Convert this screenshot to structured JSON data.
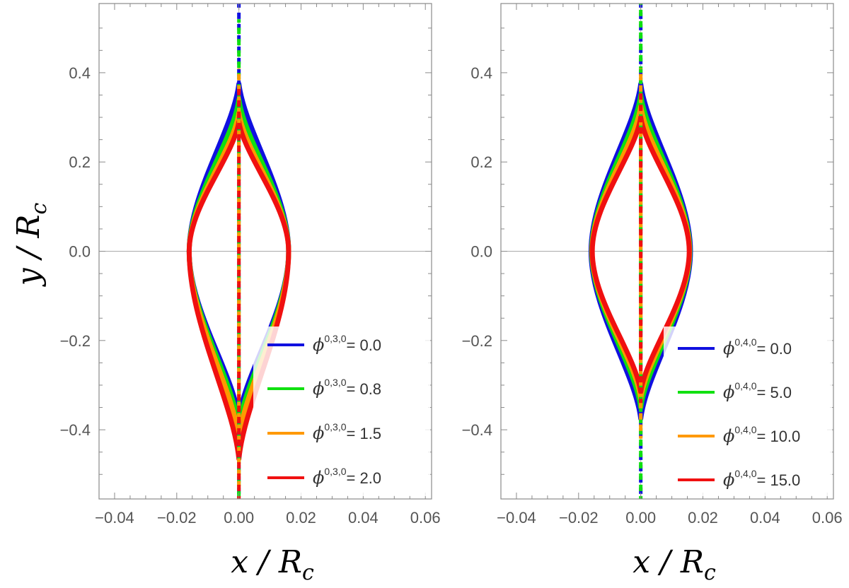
{
  "chart_data": [
    {
      "type": "line",
      "panel": "left",
      "xlabel": "x / R",
      "xlabel_sub": "c",
      "ylabel": "y / R",
      "ylabel_sub": "c",
      "xlim": [
        -0.045,
        0.062
      ],
      "ylim": [
        -0.555,
        0.555
      ],
      "xticks": [
        -0.04,
        -0.02,
        0.0,
        0.02,
        0.04,
        0.06
      ],
      "xtick_labels": [
        "−0.04",
        "−0.02",
        "0.00",
        "0.02",
        "0.04",
        "0.06"
      ],
      "yticks": [
        -0.4,
        -0.2,
        0.0,
        0.2,
        0.4
      ],
      "ytick_labels": [
        "−0.4",
        "−0.2",
        "0.0",
        "0.2",
        "0.4"
      ],
      "legend_position": "bottom-right",
      "series": [
        {
          "name_sym": "ϕ",
          "name_sup": "0,3,0",
          "name_val": "= 0.0",
          "color": "#1010e0",
          "x_max": 0.016,
          "tip_top": 0.375,
          "tip_bottom": -0.375,
          "stick_top": 0.56,
          "stick_bottom": -0.56
        },
        {
          "name_sym": "ϕ",
          "name_sup": "0,3,0",
          "name_val": "= 0.8",
          "color": "#10e010",
          "x_max": 0.016,
          "tip_top": 0.34,
          "tip_bottom": -0.395,
          "stick_top": 0.52,
          "stick_bottom": -0.555
        },
        {
          "name_sym": "ϕ",
          "name_sup": "0,3,0",
          "name_val": "= 1.5",
          "color": "#ff9900",
          "x_max": 0.016,
          "tip_top": 0.31,
          "tip_bottom": -0.42,
          "stick_top": 0.41,
          "stick_bottom": -0.53
        },
        {
          "name_sym": "ϕ",
          "name_sup": "0,3,0",
          "name_val": "= 2.0",
          "color": "#f01010",
          "x_max": 0.016,
          "tip_top": 0.29,
          "tip_bottom": -0.465,
          "stick_top": 0.37,
          "stick_bottom": -0.555
        }
      ]
    },
    {
      "type": "line",
      "panel": "right",
      "xlabel": "x / R",
      "xlabel_sub": "c",
      "xlim": [
        -0.045,
        0.062
      ],
      "ylim": [
        -0.555,
        0.555
      ],
      "xticks": [
        -0.04,
        -0.02,
        0.0,
        0.02,
        0.04,
        0.06
      ],
      "xtick_labels": [
        "−0.04",
        "−0.02",
        "0.00",
        "0.02",
        "0.04",
        "0.06"
      ],
      "yticks": [
        -0.4,
        -0.2,
        0.0,
        0.2,
        0.4
      ],
      "ytick_labels": [
        "−0.4",
        "−0.2",
        "0.0",
        "0.2",
        "0.4"
      ],
      "legend_position": "bottom-right",
      "series": [
        {
          "name_sym": "ϕ",
          "name_sup": "0,4,0",
          "name_val": "= 0.0",
          "color": "#1010e0",
          "x_max": 0.016,
          "tip_top": 0.375,
          "tip_bottom": -0.375,
          "stick_top": 0.56,
          "stick_bottom": -0.56
        },
        {
          "name_sym": "ϕ",
          "name_sup": "0,4,0",
          "name_val": "= 5.0",
          "color": "#10e010",
          "x_max": 0.0158,
          "tip_top": 0.35,
          "tip_bottom": -0.35,
          "stick_top": 0.56,
          "stick_bottom": -0.56
        },
        {
          "name_sym": "ϕ",
          "name_sup": "0,4,0",
          "name_val": "= 10.0",
          "color": "#ff9900",
          "x_max": 0.0157,
          "tip_top": 0.325,
          "tip_bottom": -0.33,
          "stick_top": 0.41,
          "stick_bottom": -0.42
        },
        {
          "name_sym": "ϕ",
          "name_sup": "0,4,0",
          "name_val": "= 15.0",
          "color": "#f01010",
          "x_max": 0.0156,
          "tip_top": 0.3,
          "tip_bottom": -0.315,
          "stick_top": 0.36,
          "stick_bottom": -0.34
        }
      ]
    }
  ]
}
